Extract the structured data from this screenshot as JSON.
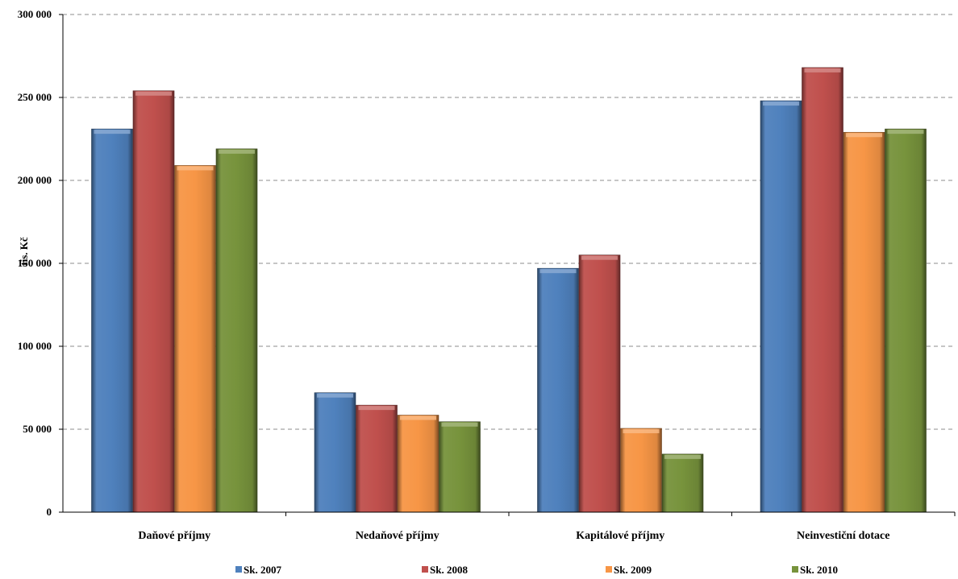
{
  "chart_data": {
    "type": "bar",
    "ylabel": "tis. Kč",
    "ylim": [
      0,
      300000
    ],
    "yticks": [
      0,
      50000,
      100000,
      150000,
      200000,
      250000,
      300000
    ],
    "ytick_labels": [
      "0",
      "50 000",
      "100 000",
      "150 000",
      "200 000",
      "250 000",
      "300 000"
    ],
    "grid": "horizontal dashed",
    "legend_position": "bottom",
    "categories": [
      "Daňové příjmy",
      "Nedaňové příjmy",
      "Kapitálové příjmy",
      "Neinvestiční dotace"
    ],
    "series": [
      {
        "name": "Sk. 2007",
        "color": "#4F81BD",
        "values": [
          231000,
          72000,
          147000,
          248000
        ]
      },
      {
        "name": "Sk. 2008",
        "color": "#C0504D",
        "values": [
          254000,
          64500,
          155000,
          268000
        ]
      },
      {
        "name": "Sk. 2009",
        "color": "#F79646",
        "values": [
          209000,
          58500,
          50500,
          229000
        ]
      },
      {
        "name": "Sk. 2010",
        "color": "#77933C",
        "values": [
          219000,
          54500,
          35000,
          231000
        ]
      }
    ]
  }
}
